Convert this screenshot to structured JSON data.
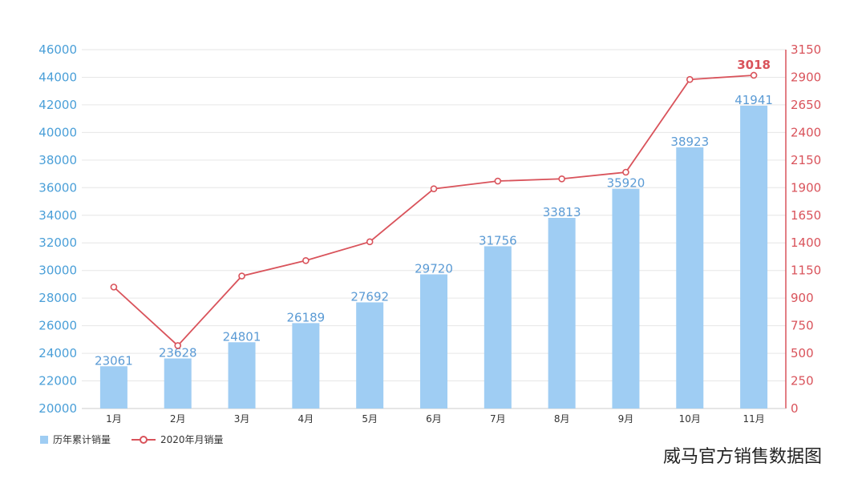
{
  "chart_data": {
    "type": "bar+line",
    "categories": [
      "1月",
      "2月",
      "3月",
      "4月",
      "5月",
      "6月",
      "7月",
      "8月",
      "9月",
      "10月",
      "11月"
    ],
    "series": [
      {
        "name": "历年累计销量",
        "type": "bar",
        "axis": "left",
        "values": [
          23061,
          23628,
          24801,
          26189,
          27692,
          29720,
          31756,
          33813,
          35920,
          38923,
          41941
        ],
        "data_labels": [
          "23061",
          "23628",
          "24801",
          "26189",
          "27692",
          "29720",
          "31756",
          "33813",
          "35920",
          "38923",
          "41941"
        ]
      },
      {
        "name": "2020年月销量",
        "type": "line",
        "axis": "right",
        "values": [
          1100,
          570,
          1200,
          1340,
          1510,
          1990,
          2060,
          2080,
          2140,
          2980,
          3018
        ],
        "data_labels": [
          "",
          "",
          "",
          "",
          "",
          "",
          "",
          "",
          "",
          "",
          "3018"
        ]
      }
    ],
    "y_left": {
      "ylim": [
        20000,
        46000
      ],
      "ticks": [
        "20000",
        "22000",
        "24000",
        "26000",
        "28000",
        "30000",
        "32000",
        "34000",
        "36000",
        "38000",
        "40000",
        "42000",
        "44000",
        "46000"
      ]
    },
    "y_right": {
      "ylim": [
        0,
        3250
      ],
      "ticks": [
        "0",
        "250",
        "500",
        "750",
        "900",
        "1150",
        "1400",
        "1650",
        "1900",
        "2150",
        "2400",
        "2650",
        "2900",
        "3150"
      ]
    },
    "grid": true,
    "legend_position": "bottom-left",
    "colors": {
      "bar": "#9fcdf3",
      "bar_label": "#5b9bd5",
      "line": "#d9535b",
      "left_axis_text": "#4a9fd8",
      "right_axis_text": "#d9535b",
      "grid": "#e6e6e6",
      "category_text": "#333333"
    }
  },
  "caption": "威马官方销售数据图"
}
